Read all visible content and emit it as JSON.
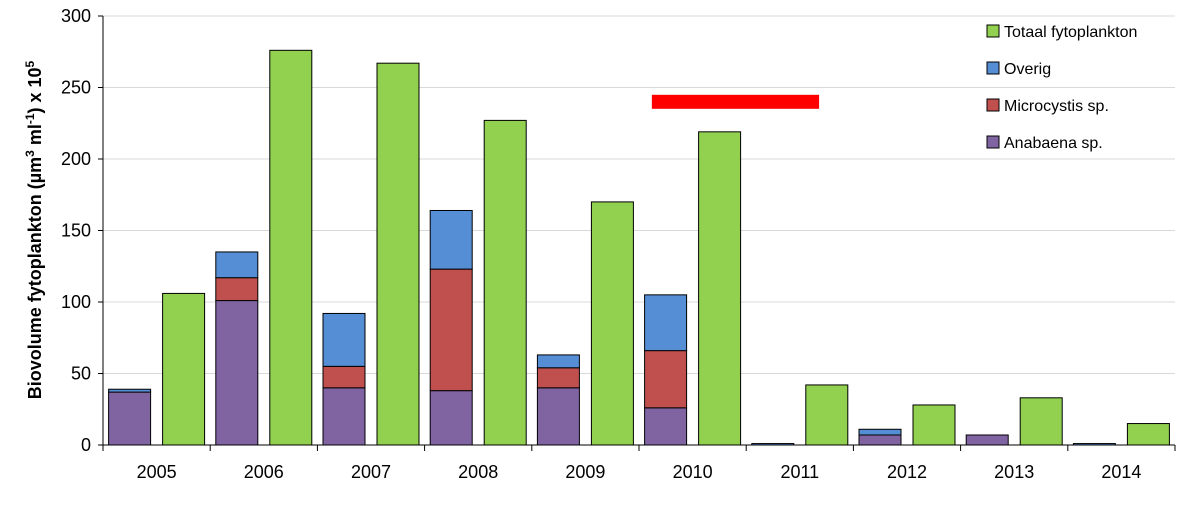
{
  "chart_data": {
    "type": "bar",
    "ylabel": {
      "text": "Biovolume fytoplankton (µm",
      "sup1": "3",
      "mid": " ml",
      "sup2": "-1",
      "end": ") x 10",
      "sup3": "5"
    },
    "ylim": [
      0,
      300
    ],
    "yticks": [
      0,
      50,
      100,
      150,
      200,
      250,
      300
    ],
    "grid": true,
    "legend_position": "top-right",
    "categories": [
      "2005",
      "2006",
      "2007",
      "2008",
      "2009",
      "2010",
      "2011",
      "2012",
      "2013",
      "2014"
    ],
    "stacked_series": [
      {
        "name": "Anabaena sp.",
        "color": "#8064a2",
        "values": [
          37,
          101,
          40,
          38,
          40,
          26,
          0,
          7,
          7,
          0
        ]
      },
      {
        "name": "Microcystis sp.",
        "color": "#c0504d",
        "values": [
          0,
          16,
          15,
          85,
          14,
          40,
          0,
          0,
          0,
          0
        ]
      },
      {
        "name": "Overig",
        "color": "#558ed5",
        "values": [
          2,
          18,
          37,
          41,
          9,
          39,
          1,
          4,
          0,
          1
        ]
      }
    ],
    "total_series": {
      "name": "Totaal fytoplankton",
      "color": "#92d050",
      "values": [
        106,
        276,
        267,
        227,
        170,
        219,
        42,
        28,
        33,
        15
      ]
    },
    "legend_order": [
      "Totaal fytoplankton",
      "Overig",
      "Microcystis sp.",
      "Anabaena sp."
    ],
    "highlight_bar": {
      "color": "#ff0000",
      "from_category": "2010",
      "to_category": "2011",
      "value": 240
    }
  }
}
